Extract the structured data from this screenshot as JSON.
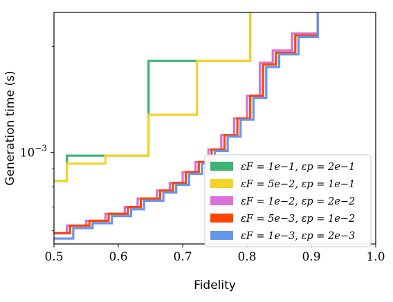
{
  "chart_data": {
    "type": "line",
    "step": true,
    "title": "",
    "xlabel": "Fidelity",
    "ylabel": "Generation time (s)",
    "xlim": [
      0.5,
      1.0
    ],
    "ylim": [
      0.00055,
      0.0025
    ],
    "yscale": "log",
    "grid": false,
    "legend_position": "lower-right",
    "x_ticks": [
      0.5,
      0.6,
      0.7,
      0.8,
      0.9,
      1.0
    ],
    "x_tick_labels": [
      "0.5",
      "0.6",
      "0.7",
      "0.8",
      "0.9",
      "1.0"
    ],
    "y_ticks": [
      0.001
    ],
    "y_tick_labels": [
      "10−3"
    ],
    "series": [
      {
        "name": "εF = 1e−1, εp = 2e−1",
        "color": "#3cb371",
        "x": [
          0.5,
          0.52,
          0.52,
          0.647,
          0.647,
          0.72,
          0.72,
          0.805,
          0.805
        ],
        "y": [
          0.00083,
          0.00083,
          0.00098,
          0.00098,
          0.00182,
          0.00182,
          0.00182,
          0.00182,
          0.0025
        ]
      },
      {
        "name": "εF = 5e−2, εp = 1e−1",
        "color": "#f5d327",
        "x": [
          0.5,
          0.52,
          0.52,
          0.58,
          0.58,
          0.647,
          0.647,
          0.722,
          0.722,
          0.805,
          0.805
        ],
        "y": [
          0.00083,
          0.00083,
          0.00093,
          0.00093,
          0.00098,
          0.00098,
          0.00128,
          0.00128,
          0.00182,
          0.00182,
          0.0025
        ]
      },
      {
        "name": "εF = 1e−2, εp = 2e−2",
        "color": "#da70d6",
        "x": [
          0.5,
          0.52,
          0.52,
          0.55,
          0.55,
          0.58,
          0.58,
          0.61,
          0.61,
          0.63,
          0.63,
          0.66,
          0.66,
          0.68,
          0.68,
          0.7,
          0.7,
          0.72,
          0.72,
          0.74,
          0.74,
          0.76,
          0.76,
          0.78,
          0.78,
          0.8,
          0.8,
          0.82,
          0.82,
          0.84,
          0.84,
          0.87,
          0.87,
          0.91,
          0.91
        ],
        "y": [
          0.00059,
          0.00059,
          0.00062,
          0.00062,
          0.00064,
          0.00064,
          0.00067,
          0.00067,
          0.0007,
          0.0007,
          0.00074,
          0.00074,
          0.00078,
          0.00078,
          0.00082,
          0.00082,
          0.00088,
          0.00088,
          0.00094,
          0.00094,
          0.00102,
          0.00102,
          0.00112,
          0.00112,
          0.00125,
          0.00125,
          0.00145,
          0.00145,
          0.0018,
          0.0018,
          0.00195,
          0.00195,
          0.00218,
          0.00218,
          0.0025
        ]
      },
      {
        "name": "εF = 5e−3, εp = 1e−2",
        "color": "#ff4500",
        "x": [
          0.5,
          0.525,
          0.525,
          0.555,
          0.555,
          0.585,
          0.585,
          0.615,
          0.615,
          0.635,
          0.635,
          0.665,
          0.665,
          0.685,
          0.685,
          0.705,
          0.705,
          0.725,
          0.725,
          0.745,
          0.745,
          0.765,
          0.765,
          0.785,
          0.785,
          0.805,
          0.805,
          0.825,
          0.825,
          0.845,
          0.845,
          0.875,
          0.875,
          0.91,
          0.91
        ],
        "y": [
          0.00059,
          0.00059,
          0.00062,
          0.00062,
          0.00064,
          0.00064,
          0.00067,
          0.00067,
          0.0007,
          0.0007,
          0.00074,
          0.00074,
          0.00078,
          0.00078,
          0.00082,
          0.00082,
          0.00088,
          0.00088,
          0.00094,
          0.00094,
          0.00102,
          0.00102,
          0.00112,
          0.00112,
          0.00125,
          0.00125,
          0.00145,
          0.00145,
          0.00178,
          0.00178,
          0.00192,
          0.00192,
          0.00215,
          0.00215,
          0.0025
        ]
      },
      {
        "name": "εF = 1e−3, εp = 2e−3",
        "color": "#6495ed",
        "x": [
          0.5,
          0.53,
          0.53,
          0.56,
          0.56,
          0.59,
          0.59,
          0.62,
          0.62,
          0.64,
          0.64,
          0.67,
          0.67,
          0.69,
          0.69,
          0.71,
          0.71,
          0.73,
          0.73,
          0.75,
          0.75,
          0.77,
          0.77,
          0.79,
          0.79,
          0.81,
          0.81,
          0.83,
          0.83,
          0.85,
          0.85,
          0.88,
          0.88,
          0.91,
          0.91
        ],
        "y": [
          0.00057,
          0.00057,
          0.00061,
          0.00061,
          0.00063,
          0.00063,
          0.00066,
          0.00066,
          0.00069,
          0.00069,
          0.00073,
          0.00073,
          0.00077,
          0.00077,
          0.00081,
          0.00081,
          0.00087,
          0.00087,
          0.00093,
          0.00093,
          0.00101,
          0.00101,
          0.00111,
          0.00111,
          0.00124,
          0.00124,
          0.00143,
          0.00143,
          0.00175,
          0.00175,
          0.0019,
          0.0019,
          0.00213,
          0.00213,
          0.0025
        ]
      }
    ]
  }
}
